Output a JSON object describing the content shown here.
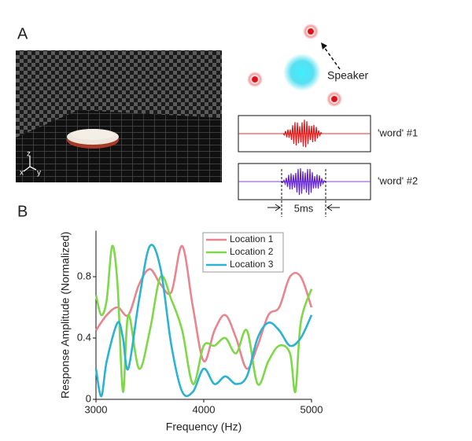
{
  "panel_labels": [
    "A",
    "B"
  ],
  "photo": {
    "axis_labels": [
      "z",
      "x",
      "y"
    ]
  },
  "diagram": {
    "speaker_label": "Speaker",
    "word1": "'word' #1",
    "word2": "'word' #2",
    "duration": "5ms"
  },
  "chart_data": {
    "type": "line",
    "xlabel": "Frequency (Hz)",
    "ylabel": "Response Amplitude (Normalized)",
    "xlim": [
      3000,
      5000
    ],
    "xticks": [
      3000,
      4000,
      5000
    ],
    "ylim": [
      0,
      1.1
    ],
    "yticks": [
      0,
      0.4,
      0.8
    ],
    "legend": "upper right",
    "series": [
      {
        "name": "Location 1",
        "color": "#e8858e",
        "x": [
          3000,
          3100,
          3200,
          3300,
          3400,
          3500,
          3600,
          3700,
          3800,
          3900,
          4000,
          4100,
          4200,
          4300,
          4400,
          4500,
          4600,
          4700,
          4800,
          4900,
          5000
        ],
        "values": [
          0.45,
          0.55,
          0.6,
          0.55,
          0.75,
          0.85,
          0.75,
          0.7,
          1.0,
          0.6,
          0.25,
          0.45,
          0.55,
          0.4,
          0.2,
          0.35,
          0.55,
          0.6,
          0.8,
          0.8,
          0.6
        ]
      },
      {
        "name": "Location 2",
        "color": "#7ed848",
        "x": [
          3000,
          3050,
          3100,
          3150,
          3200,
          3250,
          3300,
          3400,
          3500,
          3600,
          3700,
          3800,
          3900,
          4000,
          4100,
          4200,
          4300,
          4400,
          4500,
          4600,
          4700,
          4800,
          4850,
          4900,
          5000
        ],
        "values": [
          0.68,
          0.55,
          0.65,
          1.0,
          0.75,
          0.05,
          0.55,
          0.2,
          0.45,
          0.8,
          0.65,
          0.45,
          0.1,
          0.35,
          0.35,
          0.4,
          0.3,
          0.45,
          0.1,
          0.25,
          0.35,
          0.3,
          0.05,
          0.5,
          0.72
        ]
      },
      {
        "name": "Location 3",
        "color": "#2ab3d3",
        "x": [
          3000,
          3050,
          3100,
          3200,
          3250,
          3300,
          3400,
          3500,
          3600,
          3700,
          3800,
          3900,
          4000,
          4100,
          4200,
          4300,
          4400,
          4500,
          4600,
          4700,
          4800,
          4900,
          5000
        ],
        "values": [
          0.2,
          0.02,
          0.25,
          0.5,
          0.4,
          0.2,
          0.65,
          1.0,
          0.85,
          0.35,
          0.05,
          0.05,
          0.2,
          0.1,
          0.15,
          0.1,
          0.15,
          0.4,
          0.5,
          0.45,
          0.35,
          0.4,
          0.55
        ]
      }
    ]
  }
}
